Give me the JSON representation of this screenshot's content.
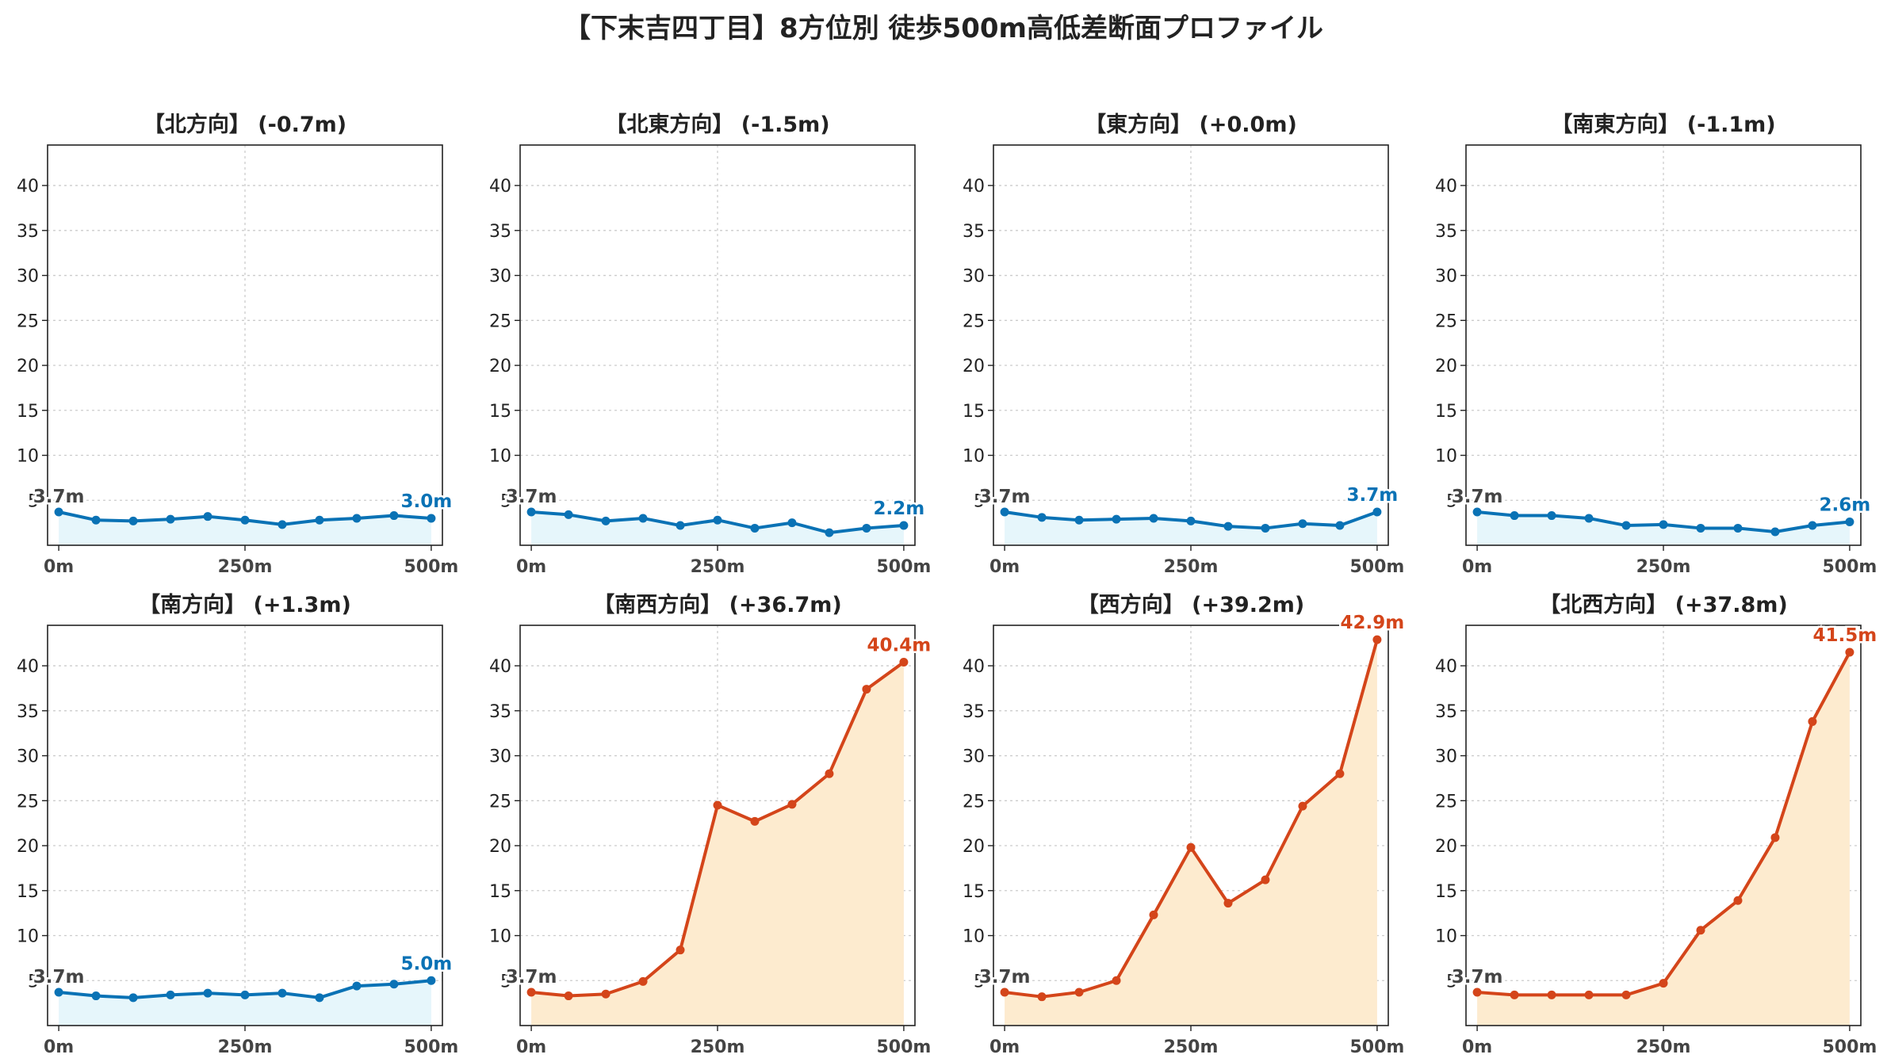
{
  "title": "【下末吉四丁目】8方位別 徒歩500m高低差断面プロファイル",
  "colors": {
    "low_line": "#0a72b5",
    "low_fill": "#e6f6fb",
    "high_line": "#d4451a",
    "high_fill": "#fdebcf",
    "grid": "#cccccc",
    "axis": "#222222",
    "start_label": "#444444"
  },
  "chart_data": [
    {
      "type": "area",
      "title": "【北方向】 (-0.7m)",
      "theme": "low",
      "x": [
        0,
        50,
        100,
        150,
        200,
        250,
        300,
        350,
        400,
        450,
        500
      ],
      "values": [
        3.7,
        2.8,
        2.7,
        2.9,
        3.2,
        2.8,
        2.3,
        2.8,
        3.0,
        3.3,
        3.0
      ],
      "xticks": [
        "0m",
        "250m",
        "500m"
      ],
      "yticks": [
        "5",
        "10",
        "15",
        "20",
        "25",
        "30",
        "35",
        "40"
      ],
      "ylim": [
        0,
        44.5
      ],
      "xlim": [
        -15,
        515
      ],
      "start_label": "3.7m",
      "end_label": "3.0m",
      "grid": true
    },
    {
      "type": "area",
      "title": "【北東方向】 (-1.5m)",
      "theme": "low",
      "x": [
        0,
        50,
        100,
        150,
        200,
        250,
        300,
        350,
        400,
        450,
        500
      ],
      "values": [
        3.7,
        3.4,
        2.7,
        3.0,
        2.2,
        2.8,
        1.9,
        2.5,
        1.4,
        1.9,
        2.2
      ],
      "xticks": [
        "0m",
        "250m",
        "500m"
      ],
      "yticks": [
        "5",
        "10",
        "15",
        "20",
        "25",
        "30",
        "35",
        "40"
      ],
      "ylim": [
        0,
        44.5
      ],
      "xlim": [
        -15,
        515
      ],
      "start_label": "3.7m",
      "end_label": "2.2m",
      "grid": true
    },
    {
      "type": "area",
      "title": "【東方向】 (+0.0m)",
      "theme": "low",
      "x": [
        0,
        50,
        100,
        150,
        200,
        250,
        300,
        350,
        400,
        450,
        500
      ],
      "values": [
        3.7,
        3.1,
        2.8,
        2.9,
        3.0,
        2.7,
        2.1,
        1.9,
        2.4,
        2.2,
        3.7
      ],
      "xticks": [
        "0m",
        "250m",
        "500m"
      ],
      "yticks": [
        "5",
        "10",
        "15",
        "20",
        "25",
        "30",
        "35",
        "40"
      ],
      "ylim": [
        0,
        44.5
      ],
      "xlim": [
        -15,
        515
      ],
      "start_label": "3.7m",
      "end_label": "3.7m",
      "grid": true
    },
    {
      "type": "area",
      "title": "【南東方向】 (-1.1m)",
      "theme": "low",
      "x": [
        0,
        50,
        100,
        150,
        200,
        250,
        300,
        350,
        400,
        450,
        500
      ],
      "values": [
        3.7,
        3.3,
        3.3,
        3.0,
        2.2,
        2.3,
        1.9,
        1.9,
        1.5,
        2.2,
        2.6
      ],
      "xticks": [
        "0m",
        "250m",
        "500m"
      ],
      "yticks": [
        "5",
        "10",
        "15",
        "20",
        "25",
        "30",
        "35",
        "40"
      ],
      "ylim": [
        0,
        44.5
      ],
      "xlim": [
        -15,
        515
      ],
      "start_label": "3.7m",
      "end_label": "2.6m",
      "grid": true
    },
    {
      "type": "area",
      "title": "【南方向】 (+1.3m)",
      "theme": "low",
      "x": [
        0,
        50,
        100,
        150,
        200,
        250,
        300,
        350,
        400,
        450,
        500
      ],
      "values": [
        3.7,
        3.3,
        3.1,
        3.4,
        3.6,
        3.4,
        3.6,
        3.1,
        4.4,
        4.6,
        5.0
      ],
      "xticks": [
        "0m",
        "250m",
        "500m"
      ],
      "yticks": [
        "5",
        "10",
        "15",
        "20",
        "25",
        "30",
        "35",
        "40"
      ],
      "ylim": [
        0,
        44.5
      ],
      "xlim": [
        -15,
        515
      ],
      "start_label": "3.7m",
      "end_label": "5.0m",
      "grid": true
    },
    {
      "type": "area",
      "title": "【南西方向】 (+36.7m)",
      "theme": "high",
      "x": [
        0,
        50,
        100,
        150,
        200,
        250,
        300,
        350,
        400,
        450,
        500
      ],
      "values": [
        3.7,
        3.3,
        3.5,
        4.9,
        8.4,
        24.5,
        22.7,
        24.6,
        28.0,
        37.4,
        40.4
      ],
      "xticks": [
        "0m",
        "250m",
        "500m"
      ],
      "yticks": [
        "5",
        "10",
        "15",
        "20",
        "25",
        "30",
        "35",
        "40"
      ],
      "ylim": [
        0,
        44.5
      ],
      "xlim": [
        -15,
        515
      ],
      "start_label": "3.7m",
      "end_label": "40.4m",
      "grid": true
    },
    {
      "type": "area",
      "title": "【西方向】 (+39.2m)",
      "theme": "high",
      "x": [
        0,
        50,
        100,
        150,
        200,
        250,
        300,
        350,
        400,
        450,
        500
      ],
      "values": [
        3.7,
        3.2,
        3.7,
        5.0,
        12.3,
        19.8,
        13.6,
        16.2,
        24.4,
        28.0,
        42.9
      ],
      "xticks": [
        "0m",
        "250m",
        "500m"
      ],
      "yticks": [
        "5",
        "10",
        "15",
        "20",
        "25",
        "30",
        "35",
        "40"
      ],
      "ylim": [
        0,
        44.5
      ],
      "xlim": [
        -15,
        515
      ],
      "start_label": "3.7m",
      "end_label": "42.9m",
      "grid": true
    },
    {
      "type": "area",
      "title": "【北西方向】 (+37.8m)",
      "theme": "high",
      "x": [
        0,
        50,
        100,
        150,
        200,
        250,
        300,
        350,
        400,
        450,
        500
      ],
      "values": [
        3.7,
        3.4,
        3.4,
        3.4,
        3.4,
        4.7,
        10.6,
        13.9,
        20.9,
        33.8,
        41.5
      ],
      "xticks": [
        "0m",
        "250m",
        "500m"
      ],
      "yticks": [
        "5",
        "10",
        "15",
        "20",
        "25",
        "30",
        "35",
        "40"
      ],
      "ylim": [
        0,
        44.5
      ],
      "xlim": [
        -15,
        515
      ],
      "start_label": "3.7m",
      "end_label": "41.5m",
      "grid": true
    }
  ]
}
